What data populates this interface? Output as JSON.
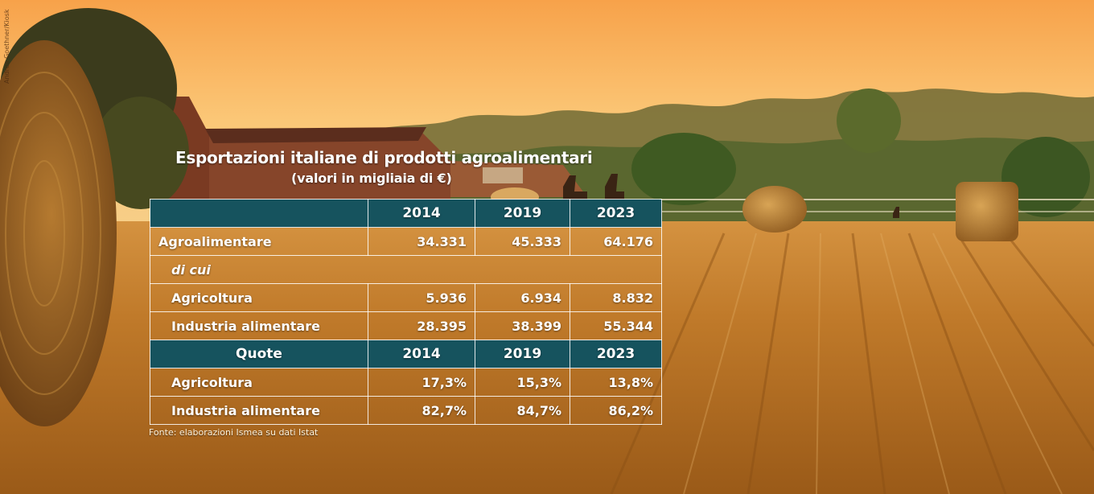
{
  "photo_credit": "Andrea Goethner/Kiosk",
  "title": "Esportazioni italiane di prodotti agroalimentari",
  "subtitle": "(valori in migliaia di €)",
  "table": {
    "header": {
      "label": "",
      "years": [
        "2014",
        "2019",
        "2023"
      ]
    },
    "rows": [
      {
        "label": "Agroalimentare",
        "values": [
          "34.331",
          "45.333",
          "64.176"
        ]
      },
      {
        "label": "di cui"
      },
      {
        "label": "Agricoltura",
        "values": [
          "5.936",
          "6.934",
          "8.832"
        ]
      },
      {
        "label": "Industria alimentare",
        "values": [
          "28.395",
          "38.399",
          "55.344"
        ]
      }
    ],
    "quote_header": {
      "label": "Quote",
      "years": [
        "2014",
        "2019",
        "2023"
      ]
    },
    "quote_rows": [
      {
        "label": "Agricoltura",
        "values": [
          "17,3%",
          "15,3%",
          "13,8%"
        ]
      },
      {
        "label": "Industria alimentare",
        "values": [
          "82,7%",
          "84,7%",
          "86,2%"
        ]
      }
    ]
  },
  "source": "Fonte: elaborazioni Ismea su dati Istat",
  "colors": {
    "header_bg": "#16535e",
    "sky": "#f4b45a",
    "field": "#b8721f"
  }
}
